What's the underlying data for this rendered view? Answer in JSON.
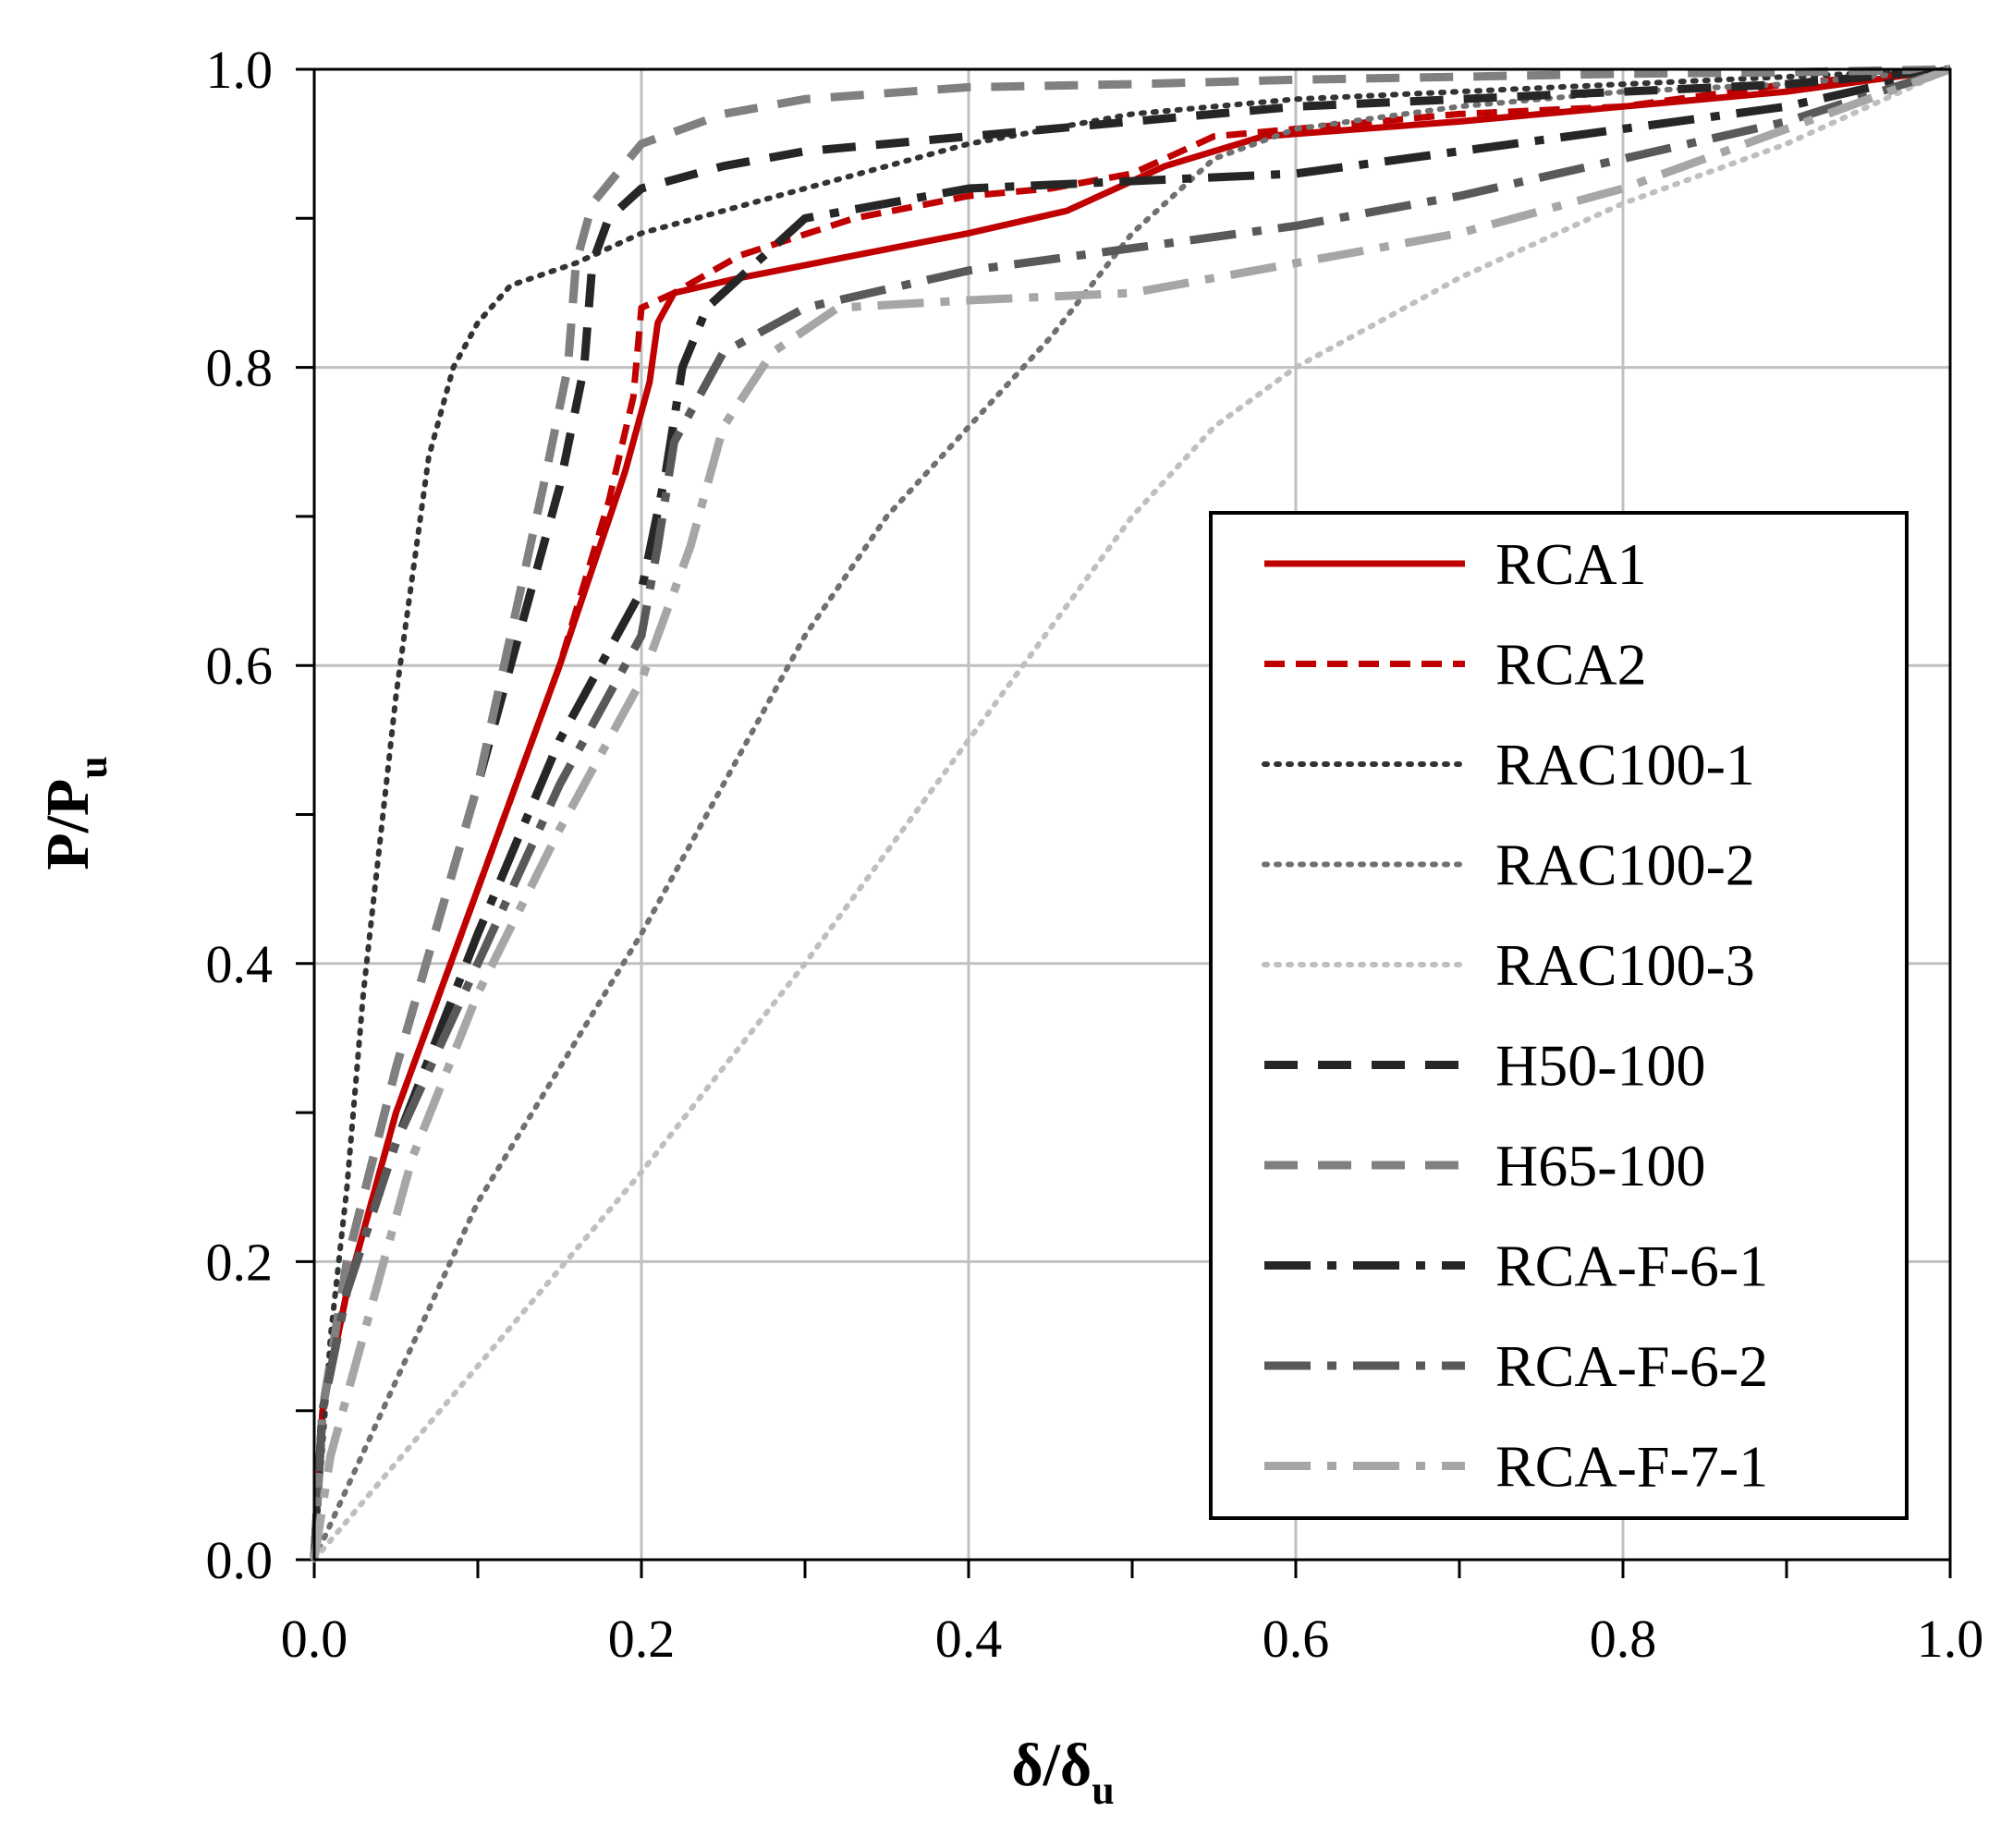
{
  "chart_data": {
    "type": "line",
    "xlabel": "δ/δ",
    "xlabel_sub": "u",
    "ylabel": "P/P",
    "ylabel_sub": "u",
    "xlim": [
      0,
      1
    ],
    "ylim": [
      0,
      1
    ],
    "grid": true,
    "legend_position": "bottom-right",
    "x_ticks": [
      0.0,
      0.2,
      0.4,
      0.6,
      0.8,
      1.0
    ],
    "y_ticks": [
      0.0,
      0.2,
      0.4,
      0.6,
      0.8,
      1.0
    ],
    "x_tick_labels": [
      "0.0",
      "0.2",
      "0.4",
      "0.6",
      "0.8",
      "1.0"
    ],
    "y_tick_labels": [
      "0.0",
      "0.2",
      "0.4",
      "0.6",
      "0.8",
      "1.0"
    ],
    "series": [
      {
        "name": "RCA1",
        "color": "#c00000",
        "style": "solid",
        "x": [
          0,
          0.005,
          0.02,
          0.05,
          0.1,
          0.15,
          0.19,
          0.205,
          0.21,
          0.22,
          0.26,
          0.33,
          0.4,
          0.46,
          0.52,
          0.58,
          0.7,
          0.8,
          0.9,
          1.0
        ],
        "y": [
          0,
          0.1,
          0.18,
          0.3,
          0.45,
          0.6,
          0.73,
          0.79,
          0.83,
          0.85,
          0.86,
          0.875,
          0.89,
          0.905,
          0.935,
          0.955,
          0.965,
          0.975,
          0.985,
          1.0
        ]
      },
      {
        "name": "RCA2",
        "color": "#c00000",
        "style": "dashed-short",
        "x": [
          0,
          0.005,
          0.02,
          0.05,
          0.1,
          0.15,
          0.18,
          0.195,
          0.2,
          0.22,
          0.26,
          0.33,
          0.4,
          0.45,
          0.5,
          0.55,
          0.6,
          0.7,
          0.8,
          0.9,
          1.0
        ],
        "y": [
          0,
          0.1,
          0.18,
          0.3,
          0.45,
          0.6,
          0.71,
          0.78,
          0.84,
          0.85,
          0.875,
          0.9,
          0.915,
          0.92,
          0.93,
          0.955,
          0.96,
          0.97,
          0.975,
          0.99,
          1.0
        ]
      },
      {
        "name": "RAC100-1",
        "color": "#333333",
        "style": "dotted",
        "x": [
          0,
          0.01,
          0.02,
          0.03,
          0.05,
          0.07,
          0.085,
          0.1,
          0.12,
          0.16,
          0.2,
          0.3,
          0.4,
          0.5,
          0.6,
          0.7,
          0.8,
          0.9,
          1.0
        ],
        "y": [
          0,
          0.15,
          0.25,
          0.38,
          0.58,
          0.74,
          0.8,
          0.83,
          0.855,
          0.87,
          0.89,
          0.92,
          0.95,
          0.97,
          0.98,
          0.985,
          0.99,
          0.995,
          1.0
        ]
      },
      {
        "name": "RAC100-2",
        "color": "#707070",
        "style": "dotted",
        "x": [
          0,
          0.05,
          0.1,
          0.15,
          0.2,
          0.25,
          0.3,
          0.35,
          0.4,
          0.45,
          0.5,
          0.55,
          0.6,
          0.7,
          0.8,
          0.9,
          1.0
        ],
        "y": [
          0,
          0.12,
          0.24,
          0.33,
          0.42,
          0.52,
          0.62,
          0.7,
          0.76,
          0.82,
          0.89,
          0.94,
          0.96,
          0.975,
          0.985,
          0.99,
          1.0
        ]
      },
      {
        "name": "RAC100-3",
        "color": "#bfbfbf",
        "style": "dotted",
        "x": [
          0,
          0.1,
          0.2,
          0.3,
          0.4,
          0.5,
          0.55,
          0.6,
          0.7,
          0.8,
          0.9,
          1.0
        ],
        "y": [
          0,
          0.13,
          0.26,
          0.4,
          0.55,
          0.7,
          0.76,
          0.8,
          0.86,
          0.91,
          0.95,
          1.0
        ]
      },
      {
        "name": "H50-100",
        "color": "#262626",
        "style": "dashed",
        "x": [
          0,
          0.005,
          0.02,
          0.05,
          0.1,
          0.15,
          0.165,
          0.17,
          0.18,
          0.2,
          0.25,
          0.3,
          0.4,
          0.5,
          0.6,
          0.7,
          0.8,
          0.9,
          1.0
        ],
        "y": [
          0,
          0.1,
          0.2,
          0.33,
          0.52,
          0.72,
          0.8,
          0.87,
          0.9,
          0.92,
          0.935,
          0.945,
          0.955,
          0.965,
          0.975,
          0.98,
          0.985,
          0.99,
          1.0
        ]
      },
      {
        "name": "H65-100",
        "color": "#808080",
        "style": "dashed",
        "x": [
          0,
          0.005,
          0.02,
          0.05,
          0.1,
          0.14,
          0.155,
          0.16,
          0.17,
          0.2,
          0.25,
          0.3,
          0.4,
          0.5,
          0.6,
          0.7,
          0.8,
          0.9,
          1.0
        ],
        "y": [
          0,
          0.1,
          0.2,
          0.33,
          0.52,
          0.72,
          0.8,
          0.87,
          0.91,
          0.95,
          0.97,
          0.98,
          0.988,
          0.99,
          0.993,
          0.995,
          0.997,
          0.998,
          1.0
        ]
      },
      {
        "name": "RCA-F-6-1",
        "color": "#262626",
        "style": "dashdot",
        "x": [
          0,
          0.005,
          0.02,
          0.05,
          0.1,
          0.15,
          0.2,
          0.215,
          0.225,
          0.24,
          0.3,
          0.4,
          0.5,
          0.6,
          0.7,
          0.8,
          0.9,
          1.0
        ],
        "y": [
          0,
          0.1,
          0.18,
          0.28,
          0.42,
          0.55,
          0.65,
          0.73,
          0.8,
          0.84,
          0.9,
          0.92,
          0.925,
          0.93,
          0.945,
          0.96,
          0.975,
          1.0
        ]
      },
      {
        "name": "RCA-F-6-2",
        "color": "#595959",
        "style": "dashdot",
        "x": [
          0,
          0.005,
          0.02,
          0.05,
          0.1,
          0.15,
          0.2,
          0.21,
          0.22,
          0.25,
          0.3,
          0.4,
          0.5,
          0.6,
          0.7,
          0.8,
          0.9,
          1.0
        ],
        "y": [
          0,
          0.1,
          0.18,
          0.28,
          0.4,
          0.52,
          0.62,
          0.68,
          0.75,
          0.81,
          0.84,
          0.865,
          0.88,
          0.895,
          0.915,
          0.94,
          0.965,
          1.0
        ]
      },
      {
        "name": "RCA-F-7-1",
        "color": "#a6a6a6",
        "style": "dashdot",
        "x": [
          0,
          0.01,
          0.03,
          0.06,
          0.1,
          0.15,
          0.2,
          0.23,
          0.25,
          0.28,
          0.32,
          0.4,
          0.5,
          0.6,
          0.7,
          0.8,
          0.9,
          1.0
        ],
        "y": [
          0,
          0.07,
          0.15,
          0.27,
          0.38,
          0.49,
          0.59,
          0.68,
          0.76,
          0.81,
          0.84,
          0.845,
          0.85,
          0.87,
          0.89,
          0.92,
          0.96,
          1.0
        ]
      }
    ]
  }
}
